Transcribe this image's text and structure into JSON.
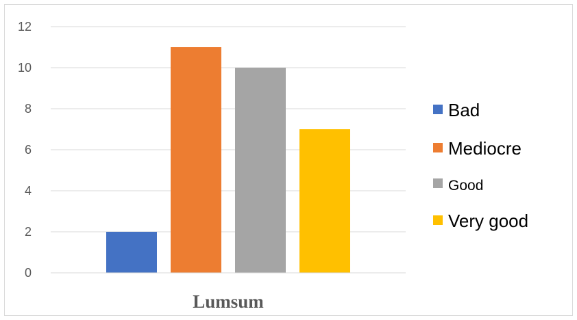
{
  "chart_data": {
    "type": "bar",
    "categories": [
      "Lumsum"
    ],
    "series": [
      {
        "name": "Bad",
        "values": [
          2
        ],
        "color": "#4472C4"
      },
      {
        "name": "Mediocre",
        "values": [
          11
        ],
        "color": "#ED7D31"
      },
      {
        "name": "Good",
        "values": [
          10
        ],
        "color": "#A5A5A5"
      },
      {
        "name": "Very good",
        "values": [
          7
        ],
        "color": "#FFC000"
      }
    ],
    "ylim": [
      0,
      12
    ],
    "yticks": [
      "0",
      "2",
      "4",
      "6",
      "8",
      "10",
      "12"
    ],
    "grid": true,
    "legend_position": "right"
  }
}
